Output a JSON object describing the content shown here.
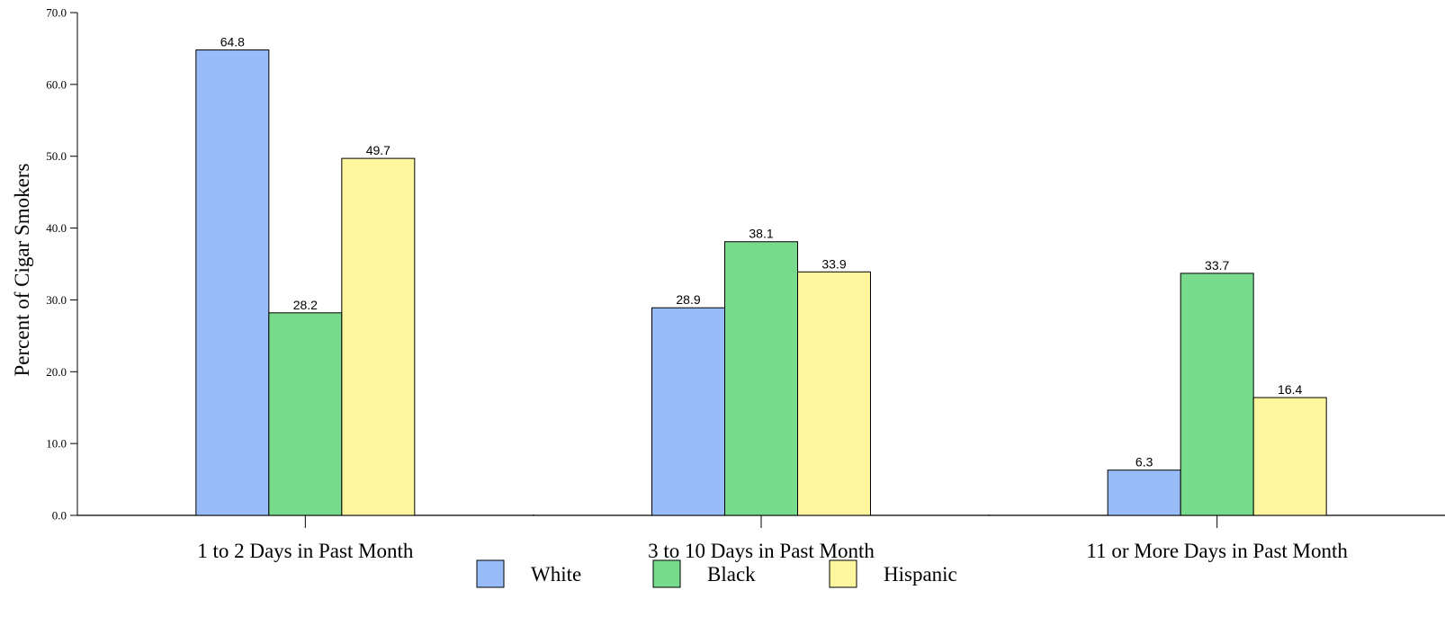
{
  "chart_data": {
    "type": "bar",
    "title": "",
    "xlabel": "",
    "ylabel": "Percent of Cigar Smokers",
    "ylim": [
      0,
      70
    ],
    "yticks": [
      "0.0",
      "10.0",
      "20.0",
      "30.0",
      "40.0",
      "50.0",
      "60.0",
      "70.0"
    ],
    "categories": [
      "1 to 2 Days in Past Month",
      "3 to 10 Days in Past Month",
      "11 or More Days in Past Month"
    ],
    "series": [
      {
        "name": "White",
        "color": "#97BCF8",
        "values": [
          64.8,
          28.9,
          6.3
        ],
        "labels": [
          "64.8",
          "28.9",
          "6.3"
        ]
      },
      {
        "name": "Black",
        "color": "#77DA8C",
        "values": [
          28.2,
          38.1,
          33.7
        ],
        "labels": [
          "28.2",
          "38.1",
          "33.7"
        ]
      },
      {
        "name": "Hispanic",
        "color": "#FEF59F",
        "values": [
          49.7,
          33.9,
          16.4
        ],
        "labels": [
          "49.7",
          "33.9",
          "16.4"
        ]
      }
    ],
    "legend_position": "bottom",
    "grid": false
  }
}
